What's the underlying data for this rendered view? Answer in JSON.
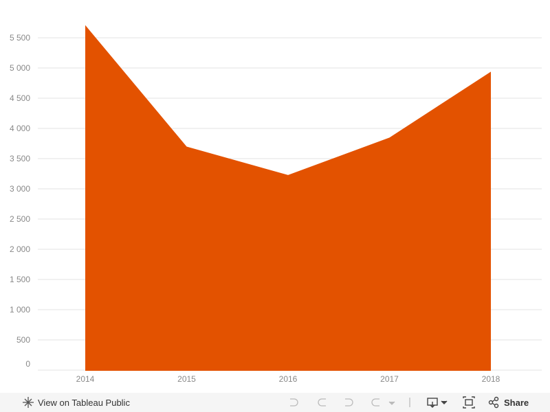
{
  "chart_data": {
    "type": "area",
    "categories": [
      "2014",
      "2015",
      "2016",
      "2017",
      "2018"
    ],
    "values": [
      5720,
      3710,
      3240,
      3860,
      4950
    ],
    "color": "#e35200",
    "ylim": [
      0,
      5800
    ],
    "yticks": [
      0,
      500,
      {
        "value": 1000,
        "label": "1 000"
      },
      {
        "value": 1500,
        "label": "1 500"
      },
      {
        "value": 2000,
        "label": "2 000"
      },
      {
        "value": 2500,
        "label": "2 500"
      },
      {
        "value": 3000,
        "label": "3 000"
      },
      {
        "value": 3500,
        "label": "3 500"
      },
      {
        "value": 4000,
        "label": "4 000"
      },
      {
        "value": 4500,
        "label": "4 500"
      },
      {
        "value": 5000,
        "label": "5 000"
      },
      {
        "value": 5500,
        "label": "5 500"
      }
    ],
    "grid": true
  },
  "toolbar": {
    "view_link": "View on Tableau Public",
    "share": "Share"
  }
}
